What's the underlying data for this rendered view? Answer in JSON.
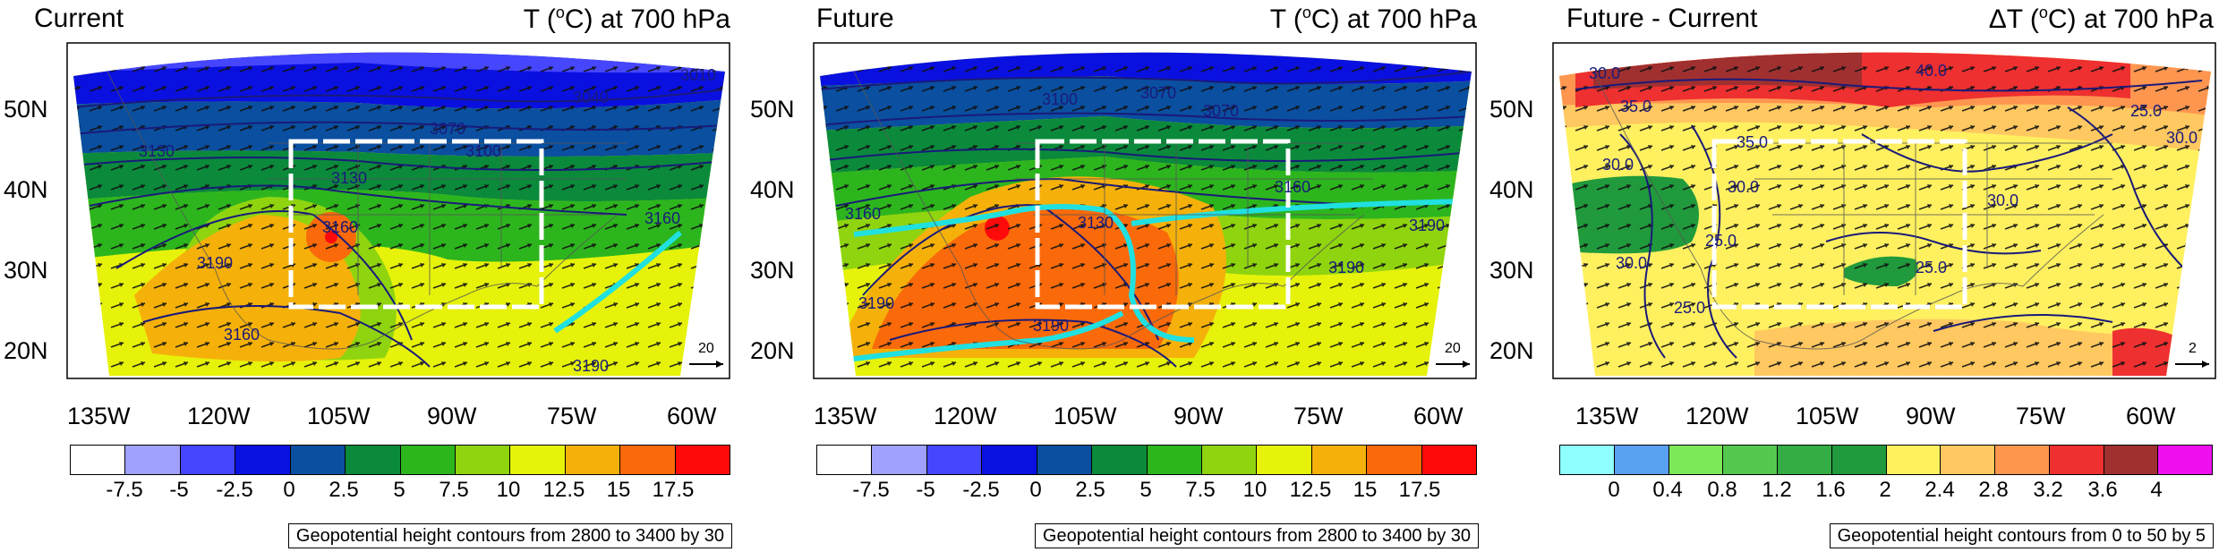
{
  "panels": [
    {
      "id": "current",
      "title_left": "Current",
      "title_right_pre": "T (",
      "title_right_sup": "o",
      "title_right_post": "C) at 700 hPa",
      "colorbar_labels": [
        "-7.5",
        "-5",
        "-2.5",
        "0",
        "2.5",
        "5",
        "7.5",
        "10",
        "12.5",
        "15",
        "17.5"
      ],
      "colorbar_colors": [
        "#ffffff",
        "#a0a0ff",
        "#4646ff",
        "#0a10e0",
        "#0a4fa0",
        "#0b8a3c",
        "#2db51e",
        "#8fd40f",
        "#e6f20a",
        "#f5b10a",
        "#fa6a0a",
        "#ff0a0a"
      ],
      "note": "Geopotential height contours from 2800 to 3400 by 30",
      "ref_vector": "20",
      "contour_labels": [
        "3130",
        "3160",
        "3190",
        "3160",
        "3190",
        "3160",
        "3130",
        "3100",
        "3070",
        "3040",
        "3010"
      ]
    },
    {
      "id": "future",
      "title_left": "Future",
      "title_right_pre": "T (",
      "title_right_sup": "o",
      "title_right_post": "C) at 700 hPa",
      "colorbar_labels": [
        "-7.5",
        "-5",
        "-2.5",
        "0",
        "2.5",
        "5",
        "7.5",
        "10",
        "12.5",
        "15",
        "17.5"
      ],
      "colorbar_colors": [
        "#ffffff",
        "#a0a0ff",
        "#4646ff",
        "#0a10e0",
        "#0a4fa0",
        "#0b8a3c",
        "#2db51e",
        "#8fd40f",
        "#e6f20a",
        "#f5b10a",
        "#fa6a0a",
        "#ff0a0a"
      ],
      "note": "Geopotential height contours from 2800 to 3400 by 30",
      "ref_vector": "20",
      "contour_labels": [
        "3190",
        "3160",
        "3130",
        "3160",
        "3190",
        "3190",
        "3190",
        "3100",
        "3070",
        "3070"
      ]
    },
    {
      "id": "diff",
      "title_left": "Future - Current",
      "title_right_pre": "ΔT (",
      "title_right_sup": "o",
      "title_right_post": "C) at 700 hPa",
      "colorbar_labels": [
        "0",
        "0.4",
        "0.8",
        "1.2",
        "1.6",
        "2",
        "2.4",
        "2.8",
        "3.2",
        "3.6",
        "4"
      ],
      "colorbar_colors": [
        "#90ffff",
        "#5aa0f0",
        "#7de85a",
        "#55c850",
        "#35ad45",
        "#209a3c",
        "#fff060",
        "#ffc860",
        "#ff9650",
        "#ee3030",
        "#a03030",
        "#ee10ee"
      ],
      "note": "Geopotential height contours from 0 to 50 by 5",
      "ref_vector": "2",
      "contour_labels": [
        "30.0",
        "35.0",
        "40.0",
        "30.0",
        "35.0",
        "30.0",
        "25.0",
        "30.0",
        "25.0",
        "30.0",
        "25.0",
        "25.0",
        "30.0"
      ]
    }
  ],
  "lat_labels": [
    "50N",
    "40N",
    "30N",
    "20N"
  ],
  "lon_labels": [
    "135W",
    "120W",
    "105W",
    "90W",
    "75W",
    "60W"
  ]
}
